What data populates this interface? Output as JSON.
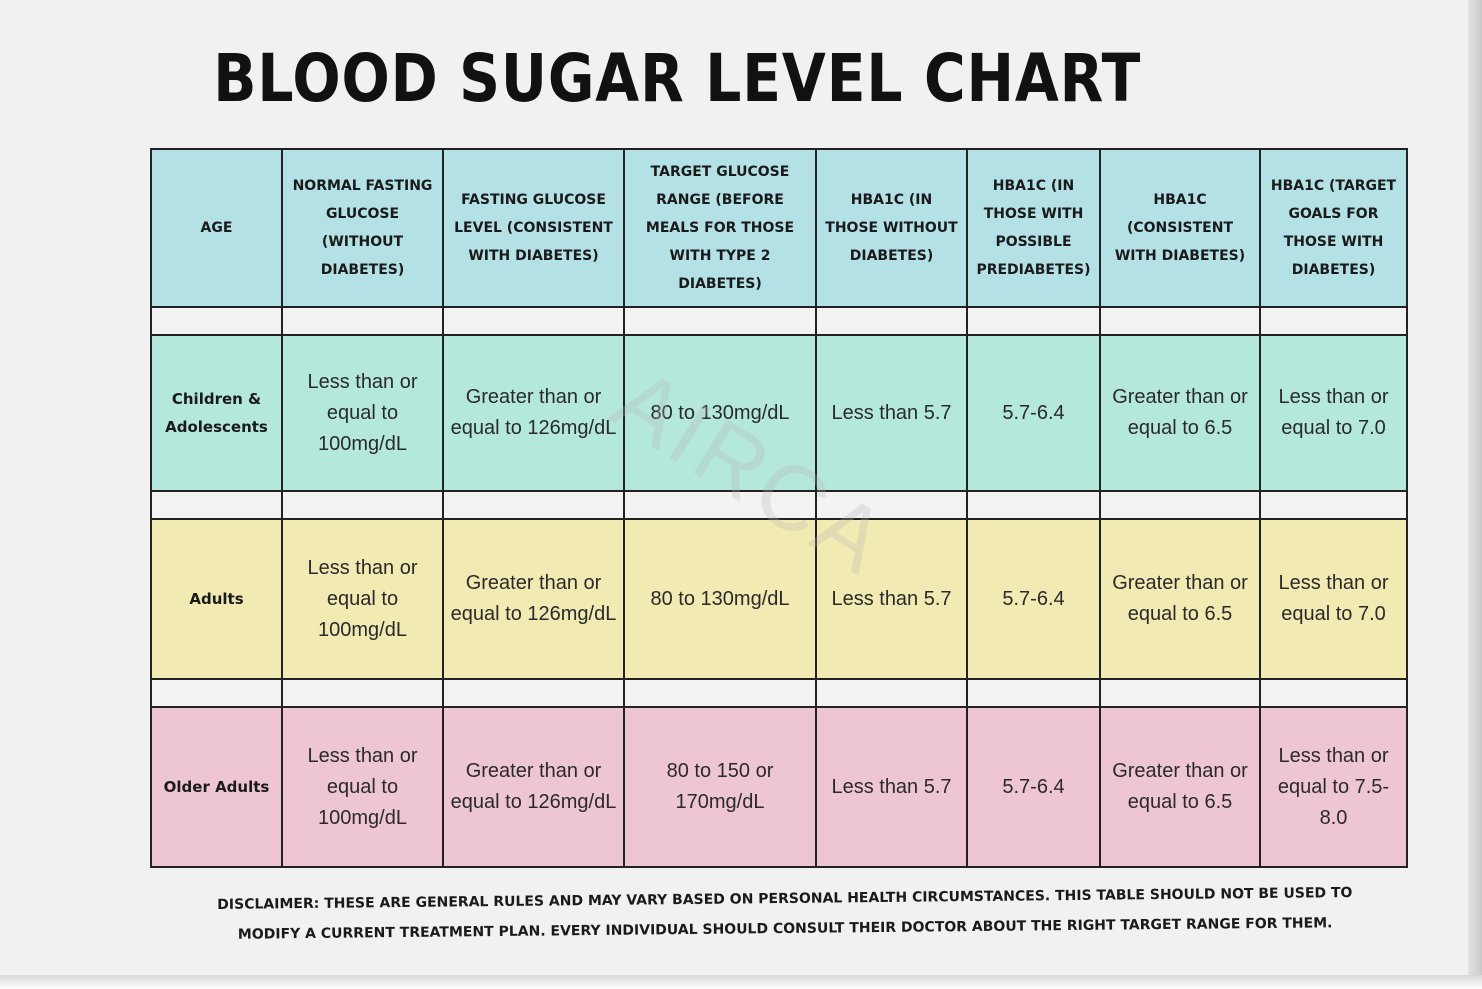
{
  "title": "BLOOD SUGAR LEVEL CHART",
  "watermark": "AIRCA",
  "table": {
    "headers": [
      "AGE",
      "NORMAL  FASTING GLUCOSE (WITHOUT DIABETES)",
      "FASTING GLUCOSE LEVEL (CONSISTENT WITH DIABETES)",
      "TARGET GLUCOSE RANGE (BEFORE MEALS FOR THOSE WITH TYPE 2 DIABETES)",
      "HBA1C (IN THOSE WITHOUT DIABETES)",
      "HBA1C (IN THOSE WITH POSSIBLE PREDIABETES)",
      "HBA1C (CONSISTENT WITH DIABETES)",
      "HBA1C (TARGET GOALS FOR THOSE WITH DIABETES)"
    ],
    "rows": [
      {
        "age": "Children & Adolescents",
        "cells": [
          "Less than or equal to 100mg/dL",
          "Greater than or equal to 126mg/dL",
          "80 to 130mg/dL",
          "Less than 5.7",
          "5.7-6.4",
          "Greater than or equal to 6.5",
          "Less than or equal to 7.0"
        ],
        "color": "#b4e8dc"
      },
      {
        "age": "Adults",
        "cells": [
          "Less than or equal to 100mg/dL",
          "Greater than or equal to 126mg/dL",
          "80 to 130mg/dL",
          "Less than 5.7",
          "5.7-6.4",
          "Greater than or equal to 6.5",
          "Less than or equal to 7.0"
        ],
        "color": "#f1ebb3"
      },
      {
        "age": "Older Adults",
        "cells": [
          "Less than or equal to 100mg/dL",
          "Greater than or equal to 126mg/dL",
          "80 to 150 or 170mg/dL",
          "Less than 5.7",
          "5.7-6.4",
          "Greater than or equal to 6.5",
          "Less than or equal to 7.5-8.0"
        ],
        "color": "#eec6d2"
      }
    ],
    "header_color": "#b3e1e6"
  },
  "disclaimer": "DISCLAIMER: THESE ARE GENERAL RULES AND MAY VARY BASED ON PERSONAL HEALTH CIRCUMSTANCES. THIS TABLE SHOULD NOT BE USED TO MODIFY A CURRENT TREATMENT PLAN. EVERY INDIVIDUAL SHOULD CONSULT THEIR DOCTOR ABOUT THE RIGHT TARGET RANGE FOR THEM.",
  "chart_data": {
    "type": "table",
    "title": "BLOOD SUGAR LEVEL CHART",
    "columns": [
      "AGE",
      "NORMAL FASTING GLUCOSE (WITHOUT DIABETES)",
      "FASTING GLUCOSE LEVEL (CONSISTENT WITH DIABETES)",
      "TARGET GLUCOSE RANGE (BEFORE MEALS FOR THOSE WITH TYPE 2 DIABETES)",
      "HBA1C (IN THOSE WITHOUT DIABETES)",
      "HBA1C (IN THOSE WITH POSSIBLE PREDIABETES)",
      "HBA1C (CONSISTENT WITH DIABETES)",
      "HBA1C (TARGET GOALS FOR THOSE WITH DIABETES)"
    ],
    "rows": [
      [
        "Children & Adolescents",
        "Less than or equal to 100mg/dL",
        "Greater than or equal to 126mg/dL",
        "80 to 130mg/dL",
        "Less than 5.7",
        "5.7-6.4",
        "Greater than or equal to 6.5",
        "Less than or equal to 7.0"
      ],
      [
        "Adults",
        "Less than or equal to 100mg/dL",
        "Greater than or equal to 126mg/dL",
        "80 to 130mg/dL",
        "Less than 5.7",
        "5.7-6.4",
        "Greater than or equal to 6.5",
        "Less than or equal to 7.0"
      ],
      [
        "Older Adults",
        "Less than or equal to 100mg/dL",
        "Greater than or equal to 126mg/dL",
        "80 to 150 or 170mg/dL",
        "Less than 5.7",
        "5.7-6.4",
        "Greater than or equal to 6.5",
        "Less than or equal to 7.5-8.0"
      ]
    ]
  }
}
